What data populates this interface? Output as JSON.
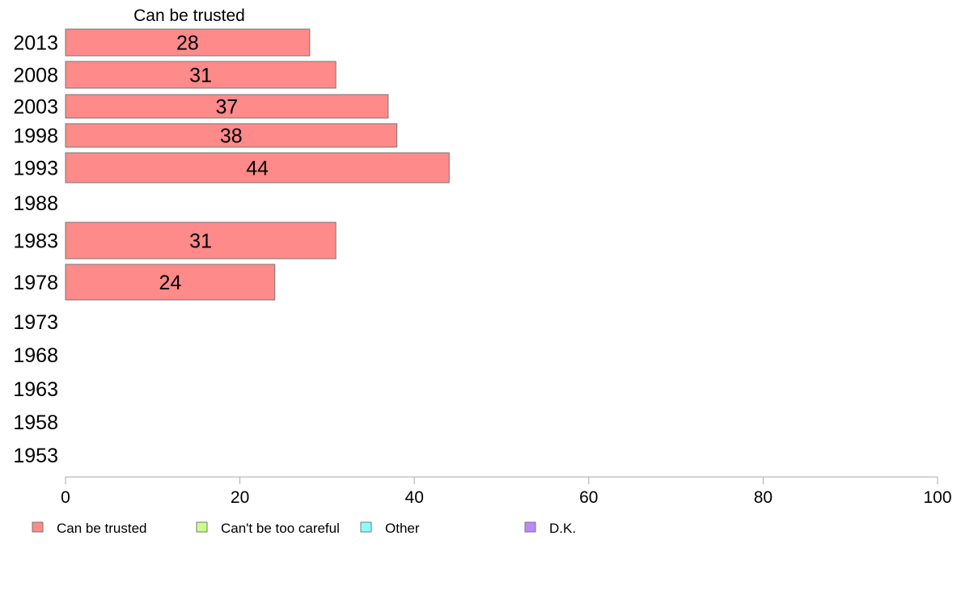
{
  "chart_data": {
    "type": "bar",
    "orientation": "horizontal",
    "series_header": "Can be trusted",
    "categories": [
      "2013",
      "2008",
      "2003",
      "1998",
      "1993",
      "1988",
      "1983",
      "1978",
      "1973",
      "1968",
      "1963",
      "1958",
      "1953"
    ],
    "series": [
      {
        "name": "Can be trusted",
        "color": "#ff8a8a",
        "values": [
          28,
          31,
          37,
          38,
          44,
          null,
          31,
          24,
          null,
          null,
          null,
          null,
          null
        ]
      }
    ],
    "xlim": [
      0,
      100
    ],
    "xticks": [
      0,
      20,
      40,
      60,
      80,
      100
    ],
    "grid": false,
    "legend": {
      "placement": "bottom",
      "entries": [
        {
          "label": "Can be trusted",
          "color": "#ff8a8a"
        },
        {
          "label": "Can't be too careful",
          "color": "#ccff88"
        },
        {
          "label": "Other",
          "color": "#88ffff"
        },
        {
          "label": "D.K.",
          "color": "#bb88ff"
        }
      ]
    }
  }
}
